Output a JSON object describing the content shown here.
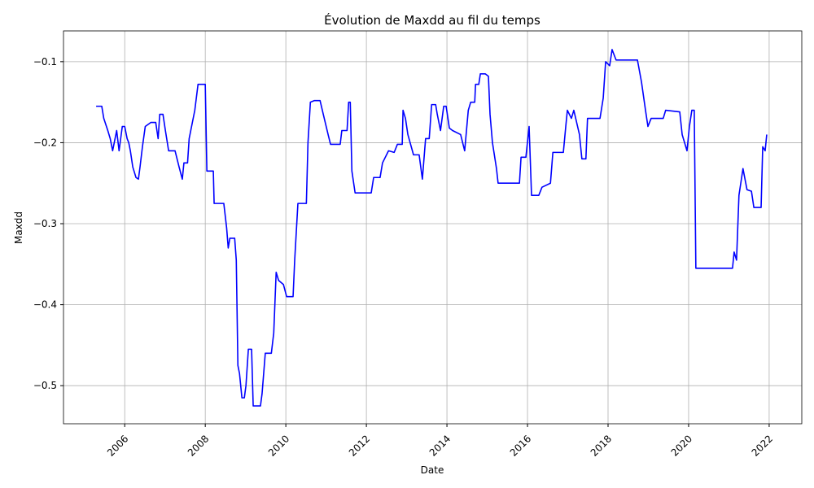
{
  "chart_data": {
    "type": "line",
    "title": "Évolution de Maxdd au fil du temps",
    "x_label": "Date",
    "y_label": "Maxdd",
    "x": [
      2005.29,
      2005.43,
      2005.48,
      2005.58,
      2005.64,
      2005.7,
      2005.76,
      2005.8,
      2005.86,
      2005.9,
      2005.94,
      2006.0,
      2006.06,
      2006.1,
      2006.14,
      2006.2,
      2006.28,
      2006.34,
      2006.38,
      2006.44,
      2006.51,
      2006.65,
      2006.77,
      2006.83,
      2006.87,
      2006.95,
      2007.01,
      2007.09,
      2007.25,
      2007.35,
      2007.43,
      2007.47,
      2007.56,
      2007.6,
      2007.68,
      2007.74,
      2007.82,
      2008.0,
      2008.04,
      2008.2,
      2008.22,
      2008.46,
      2008.53,
      2008.57,
      2008.61,
      2008.73,
      2008.77,
      2008.81,
      2008.85,
      2008.91,
      2008.97,
      2009.01,
      2009.07,
      2009.15,
      2009.19,
      2009.37,
      2009.41,
      2009.49,
      2009.64,
      2009.7,
      2009.76,
      2009.82,
      2009.94,
      2010.02,
      2010.18,
      2010.22,
      2010.3,
      2010.51,
      2010.55,
      2010.61,
      2010.71,
      2010.85,
      2010.93,
      2011.05,
      2011.11,
      2011.35,
      2011.39,
      2011.52,
      2011.56,
      2011.6,
      2011.64,
      2011.72,
      2012.12,
      2012.18,
      2012.34,
      2012.4,
      2012.55,
      2012.69,
      2012.77,
      2012.89,
      2012.91,
      2012.97,
      2013.03,
      2013.17,
      2013.31,
      2013.39,
      2013.47,
      2013.56,
      2013.62,
      2013.72,
      2013.76,
      2013.84,
      2013.92,
      2013.98,
      2014.06,
      2014.14,
      2014.34,
      2014.44,
      2014.53,
      2014.59,
      2014.69,
      2014.71,
      2014.79,
      2014.83,
      2014.95,
      2015.03,
      2015.07,
      2015.13,
      2015.23,
      2015.27,
      2015.8,
      2015.84,
      2015.96,
      2016.04,
      2016.1,
      2016.28,
      2016.36,
      2016.57,
      2016.63,
      2016.89,
      2016.95,
      2016.99,
      2017.09,
      2017.15,
      2017.29,
      2017.35,
      2017.45,
      2017.49,
      2017.8,
      2017.88,
      2017.94,
      2018.04,
      2018.1,
      2018.2,
      2018.73,
      2018.83,
      2018.93,
      2018.99,
      2019.07,
      2019.37,
      2019.43,
      2019.78,
      2019.84,
      2019.96,
      2020.02,
      2020.08,
      2020.14,
      2020.18,
      2021.09,
      2021.13,
      2021.19,
      2021.25,
      2021.35,
      2021.45,
      2021.56,
      2021.62,
      2021.8,
      2021.84,
      2021.9,
      2021.94
    ],
    "values": [
      -0.155,
      -0.155,
      -0.17,
      -0.185,
      -0.195,
      -0.21,
      -0.195,
      -0.185,
      -0.21,
      -0.195,
      -0.18,
      -0.18,
      -0.195,
      -0.2,
      -0.21,
      -0.23,
      -0.243,
      -0.245,
      -0.23,
      -0.205,
      -0.18,
      -0.175,
      -0.175,
      -0.195,
      -0.165,
      -0.165,
      -0.185,
      -0.21,
      -0.21,
      -0.23,
      -0.245,
      -0.225,
      -0.225,
      -0.195,
      -0.175,
      -0.16,
      -0.128,
      -0.128,
      -0.235,
      -0.235,
      -0.275,
      -0.275,
      -0.305,
      -0.33,
      -0.318,
      -0.318,
      -0.345,
      -0.475,
      -0.485,
      -0.515,
      -0.515,
      -0.5,
      -0.455,
      -0.455,
      -0.525,
      -0.525,
      -0.51,
      -0.46,
      -0.46,
      -0.435,
      -0.36,
      -0.37,
      -0.375,
      -0.39,
      -0.39,
      -0.345,
      -0.275,
      -0.275,
      -0.2,
      -0.15,
      -0.148,
      -0.148,
      -0.165,
      -0.19,
      -0.202,
      -0.202,
      -0.185,
      -0.185,
      -0.15,
      -0.15,
      -0.235,
      -0.262,
      -0.262,
      -0.243,
      -0.243,
      -0.225,
      -0.21,
      -0.212,
      -0.202,
      -0.202,
      -0.16,
      -0.17,
      -0.19,
      -0.215,
      -0.215,
      -0.245,
      -0.195,
      -0.195,
      -0.153,
      -0.153,
      -0.165,
      -0.185,
      -0.155,
      -0.155,
      -0.182,
      -0.185,
      -0.19,
      -0.21,
      -0.16,
      -0.15,
      -0.15,
      -0.128,
      -0.128,
      -0.115,
      -0.115,
      -0.118,
      -0.165,
      -0.2,
      -0.232,
      -0.25,
      -0.25,
      -0.218,
      -0.218,
      -0.18,
      -0.265,
      -0.265,
      -0.255,
      -0.25,
      -0.212,
      -0.212,
      -0.18,
      -0.16,
      -0.17,
      -0.16,
      -0.19,
      -0.22,
      -0.22,
      -0.17,
      -0.17,
      -0.145,
      -0.1,
      -0.105,
      -0.085,
      -0.098,
      -0.098,
      -0.125,
      -0.16,
      -0.18,
      -0.17,
      -0.17,
      -0.16,
      -0.162,
      -0.19,
      -0.21,
      -0.18,
      -0.16,
      -0.16,
      -0.355,
      -0.355,
      -0.335,
      -0.345,
      -0.265,
      -0.232,
      -0.258,
      -0.26,
      -0.28,
      -0.28,
      -0.205,
      -0.21,
      -0.19
    ],
    "color": "#0000ff",
    "xlim": [
      2004.48,
      2022.81
    ],
    "xticks": [
      2006,
      2008,
      2010,
      2012,
      2014,
      2016,
      2018,
      2020,
      2022
    ],
    "ylim": [
      -0.547,
      -0.062
    ],
    "yticks": [
      {
        "value": -0.5,
        "label": "−0.5"
      },
      {
        "value": -0.4,
        "label": "−0.4"
      },
      {
        "value": -0.3,
        "label": "−0.3"
      },
      {
        "value": -0.2,
        "label": "−0.2"
      },
      {
        "value": -0.1,
        "label": "−0.1"
      }
    ],
    "grid": true
  }
}
